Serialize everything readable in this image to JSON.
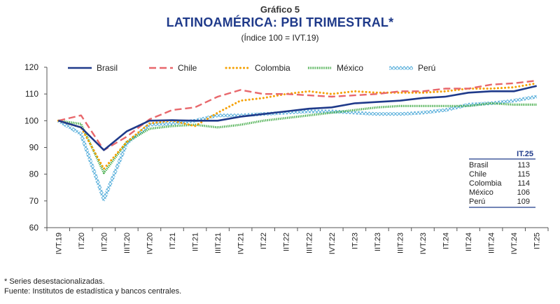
{
  "header": {
    "figure_label": "Gráfico 5",
    "title": "LATINOAMÉRICA: PBI TRIMESTRAL*",
    "subtitle": "(Índice 100 = IVT.19)"
  },
  "footer": {
    "note": "* Series desestacionalizadas.",
    "source": "Fuente: Institutos de estadística y bancos centrales."
  },
  "chart_data": {
    "type": "line",
    "title": "LATINOAMÉRICA: PBI TRIMESTRAL*",
    "subtitle": "(Índice 100 = IVT.19)",
    "xlabel": "",
    "ylabel": "",
    "ylim": [
      60,
      120
    ],
    "yticks": [
      60,
      70,
      80,
      90,
      100,
      110,
      120
    ],
    "grid": false,
    "legend_position": "top",
    "categories": [
      "IVT.19",
      "IT.20",
      "IIT.20",
      "IIIT.20",
      "IVT.20",
      "IT.21",
      "IIT.21",
      "IIIT.21",
      "IVT.21",
      "IT.22",
      "IIT.22",
      "IIIT.22",
      "IVT.22",
      "IT.23",
      "IIT.23",
      "IIIT.23",
      "IVT.23",
      "IT.24",
      "IIT.24",
      "IIIT.24",
      "IVT.24",
      "IT.25"
    ],
    "xtick_labels": [
      "IVT.19",
      "IT.20",
      "IIT.20",
      "IIIT.20",
      "IVT.20",
      "IT.21",
      "IIT.21",
      "IIIT.21",
      "IVT.21",
      "IT.22",
      "IIT.22",
      "IIIT.22",
      "IVT.22",
      "IT.23",
      "IIT.23",
      "IIIT.23",
      "IVT.23",
      "IT.24",
      "IIT.24",
      "IIIT.24",
      "IVT.24",
      "IT.25"
    ],
    "series": [
      {
        "name": "Brasil",
        "color": "#1f3a8a",
        "style": "solid",
        "values": [
          100,
          97.5,
          89,
          96,
          100,
          100.2,
          100,
          100,
          101.5,
          102.5,
          103.5,
          104.5,
          105,
          106.5,
          107,
          107.5,
          108.5,
          109,
          110.5,
          111,
          111,
          113
        ]
      },
      {
        "name": "Chile",
        "color": "#e8676b",
        "style": "dashed",
        "values": [
          100,
          102,
          89,
          94,
          100.5,
          104,
          105,
          109,
          111.5,
          110,
          110,
          109.5,
          109,
          109.5,
          110,
          111,
          111,
          112,
          112,
          113.5,
          114,
          115
        ]
      },
      {
        "name": "Colombia",
        "color": "#f5a000",
        "style": "dotted",
        "values": [
          100,
          97.5,
          82,
          92,
          99,
          100,
          98,
          103,
          107.5,
          108.5,
          110,
          111,
          110,
          111,
          110.5,
          110.5,
          110.5,
          111,
          112,
          112,
          112.5,
          114
        ]
      },
      {
        "name": "México",
        "color": "#35a53a",
        "style": "green-dots",
        "values": [
          100,
          98.8,
          80.5,
          92,
          97,
          98,
          98.5,
          97.5,
          98.5,
          100,
          101,
          102,
          103,
          104,
          105,
          105.5,
          105.5,
          105.5,
          105.5,
          106.5,
          106,
          106
        ]
      },
      {
        "name": "Perú",
        "color": "#4aa8d8",
        "style": "diamond",
        "values": [
          100,
          95,
          70.5,
          91.5,
          98.5,
          99,
          100,
          102,
          102,
          102.5,
          103,
          103.5,
          103.5,
          103,
          102.5,
          102.5,
          103,
          104,
          106,
          106.5,
          107.5,
          109
        ]
      }
    ],
    "table": {
      "header": "IT.25",
      "rows": [
        {
          "label": "Brasil",
          "value": "113"
        },
        {
          "label": "Chile",
          "value": "115"
        },
        {
          "label": "Colombia",
          "value": "114"
        },
        {
          "label": "México",
          "value": "106"
        },
        {
          "label": "Perú",
          "value": "109"
        }
      ]
    }
  }
}
